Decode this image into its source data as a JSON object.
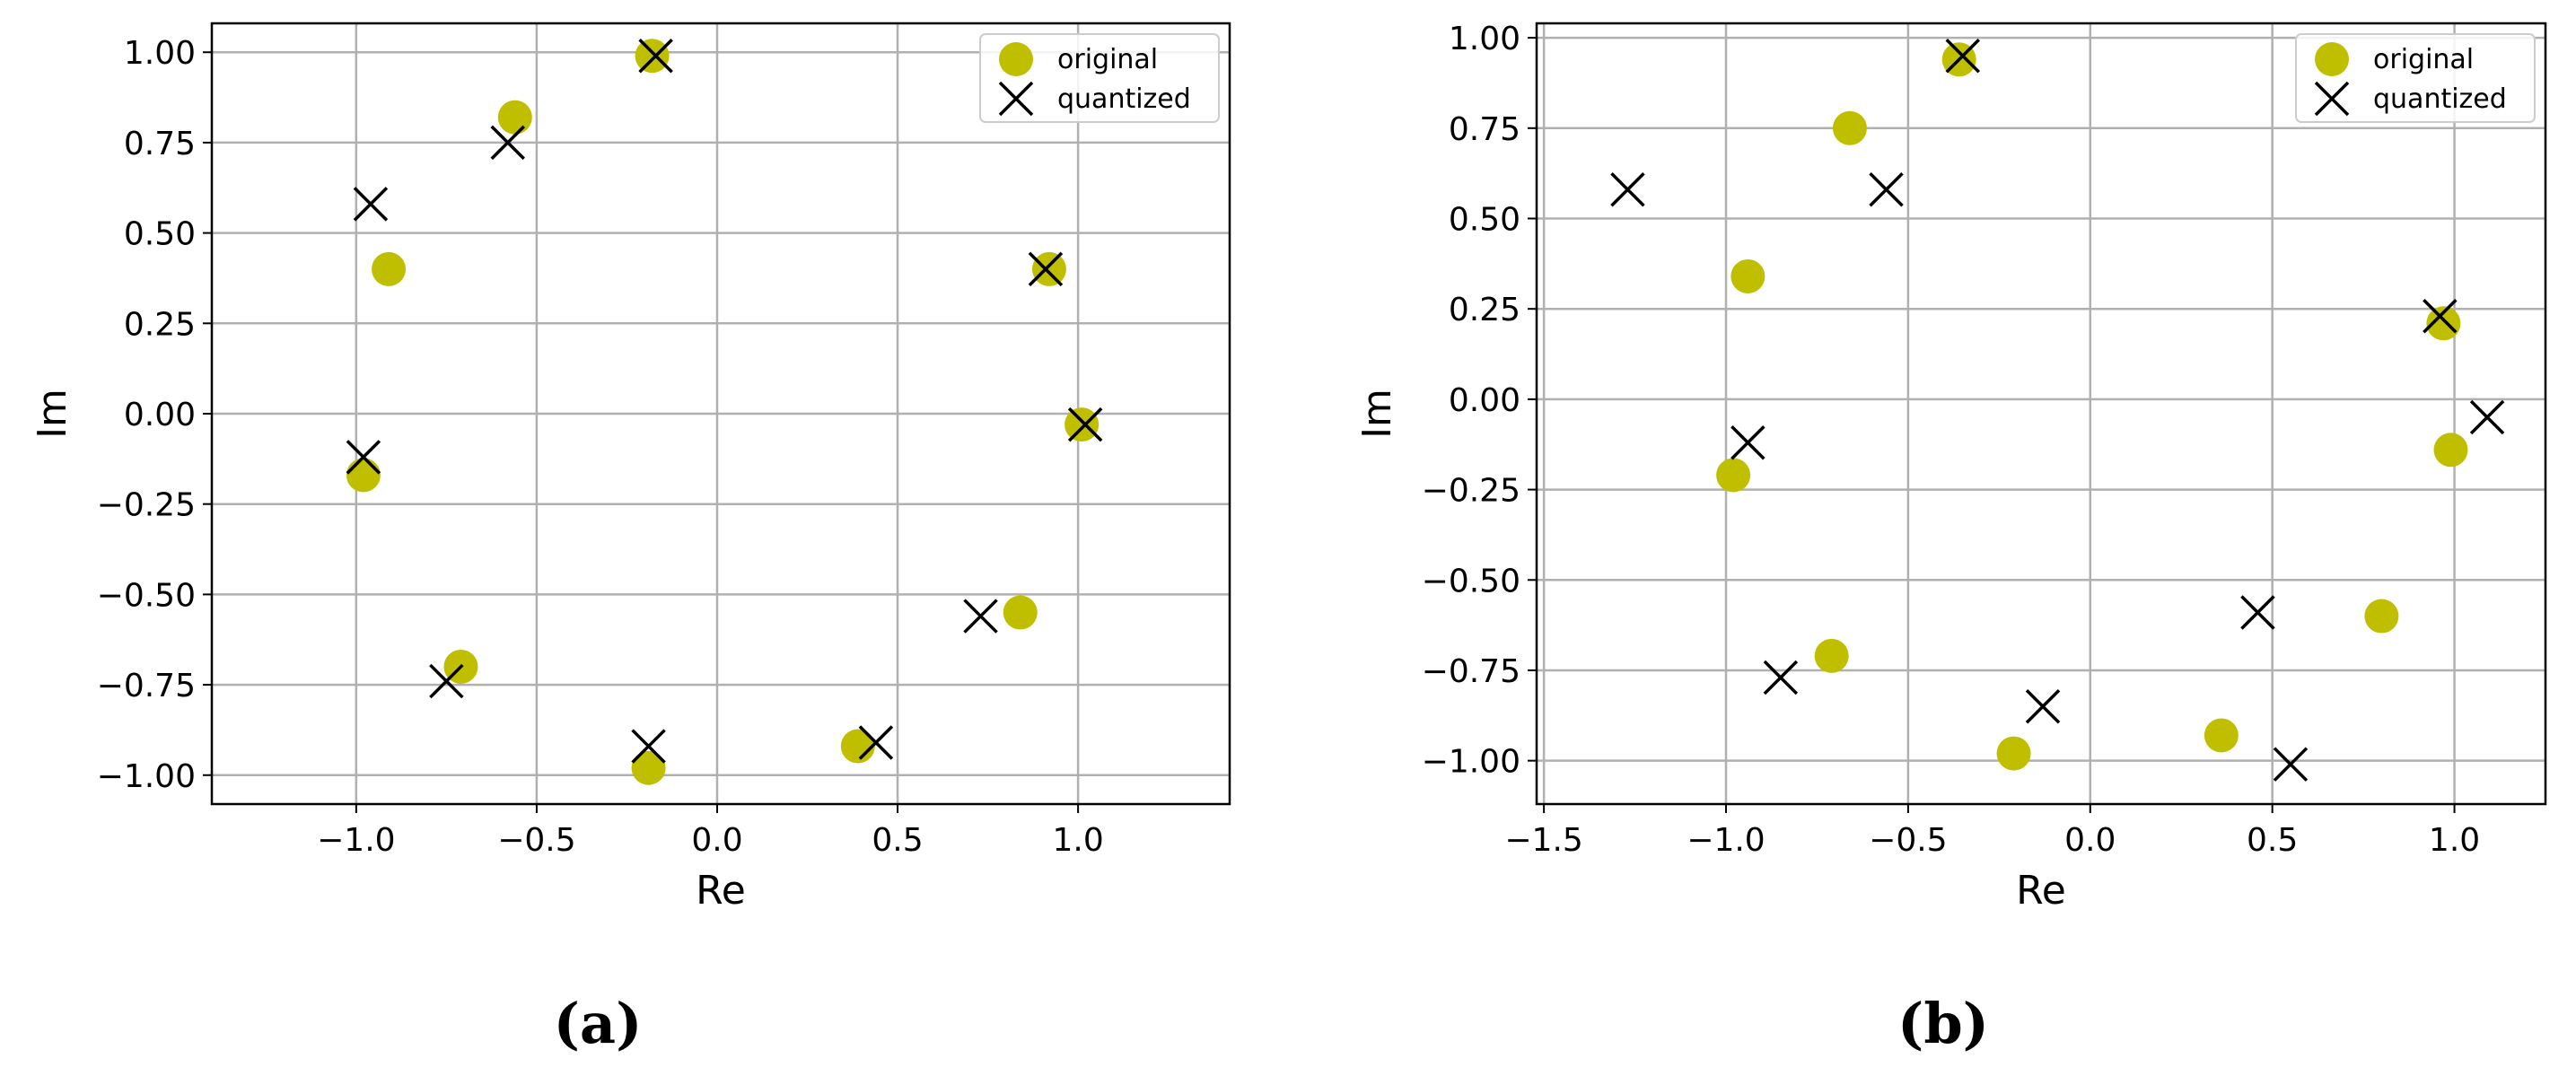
{
  "colors": {
    "original": "#bfbf00",
    "quantized": "#000000",
    "grid": "#b0b0b0"
  },
  "chart_data": [
    {
      "type": "scatter",
      "caption": "(a)",
      "xlabel": "Re",
      "ylabel": "Im",
      "xlim": [
        -1.4,
        1.42
      ],
      "ylim": [
        -1.08,
        1.08
      ],
      "xticks": [
        -1.0,
        -0.5,
        0.0,
        0.5,
        1.0
      ],
      "xtick_labels": [
        "−1.0",
        "−0.5",
        "0.0",
        "0.5",
        "1.0"
      ],
      "yticks": [
        1.0,
        0.75,
        0.5,
        0.25,
        0.0,
        -0.25,
        -0.5,
        -0.75,
        -1.0
      ],
      "ytick_labels": [
        "1.00",
        "0.75",
        "0.50",
        "0.25",
        "0.00",
        "−0.25",
        "−0.50",
        "−0.75",
        "−1.00"
      ],
      "grid": true,
      "legend_position": "top-right",
      "series": [
        {
          "name": "original",
          "marker": "circle",
          "points": [
            [
              -0.18,
              0.99
            ],
            [
              -0.56,
              0.82
            ],
            [
              -0.91,
              0.4
            ],
            [
              -0.98,
              -0.17
            ],
            [
              -0.71,
              -0.7
            ],
            [
              -0.19,
              -0.98
            ],
            [
              0.39,
              -0.92
            ],
            [
              0.84,
              -0.55
            ],
            [
              1.01,
              -0.03
            ],
            [
              0.92,
              0.4
            ]
          ]
        },
        {
          "name": "quantized",
          "marker": "x",
          "points": [
            [
              -0.17,
              0.99
            ],
            [
              -0.58,
              0.75
            ],
            [
              -0.96,
              0.58
            ],
            [
              -0.98,
              -0.12
            ],
            [
              -0.75,
              -0.74
            ],
            [
              -0.19,
              -0.92
            ],
            [
              0.44,
              -0.91
            ],
            [
              0.73,
              -0.56
            ],
            [
              1.02,
              -0.03
            ],
            [
              0.91,
              0.4
            ]
          ]
        }
      ]
    },
    {
      "type": "scatter",
      "caption": "(b)",
      "xlabel": "Re",
      "ylabel": "Im",
      "xlim": [
        -1.52,
        1.25
      ],
      "ylim": [
        -1.12,
        1.04
      ],
      "xticks": [
        -1.5,
        -1.0,
        -0.5,
        0.0,
        0.5,
        1.0
      ],
      "xtick_labels": [
        "−1.5",
        "−1.0",
        "−0.5",
        "0.0",
        "0.5",
        "1.0"
      ],
      "yticks": [
        1.0,
        0.75,
        0.5,
        0.25,
        0.0,
        -0.25,
        -0.5,
        -0.75,
        -1.0
      ],
      "ytick_labels": [
        "1.00",
        "0.75",
        "0.50",
        "0.25",
        "0.00",
        "−0.25",
        "−0.50",
        "−0.75",
        "−1.00"
      ],
      "grid": true,
      "legend_position": "top-right",
      "series": [
        {
          "name": "original",
          "marker": "circle",
          "points": [
            [
              -0.36,
              0.94
            ],
            [
              -0.66,
              0.75
            ],
            [
              -0.94,
              0.34
            ],
            [
              -0.98,
              -0.21
            ],
            [
              -0.71,
              -0.71
            ],
            [
              -0.21,
              -0.98
            ],
            [
              0.36,
              -0.93
            ],
            [
              0.8,
              -0.6
            ],
            [
              0.99,
              -0.14
            ],
            [
              0.97,
              0.21
            ]
          ]
        },
        {
          "name": "quantized",
          "marker": "x",
          "points": [
            [
              -0.35,
              0.95
            ],
            [
              -0.56,
              0.58
            ],
            [
              -1.27,
              0.58
            ],
            [
              -0.94,
              -0.12
            ],
            [
              -0.85,
              -0.77
            ],
            [
              -0.13,
              -0.85
            ],
            [
              0.55,
              -1.01
            ],
            [
              0.46,
              -0.59
            ],
            [
              1.09,
              -0.05
            ],
            [
              0.96,
              0.23
            ]
          ]
        }
      ]
    }
  ]
}
